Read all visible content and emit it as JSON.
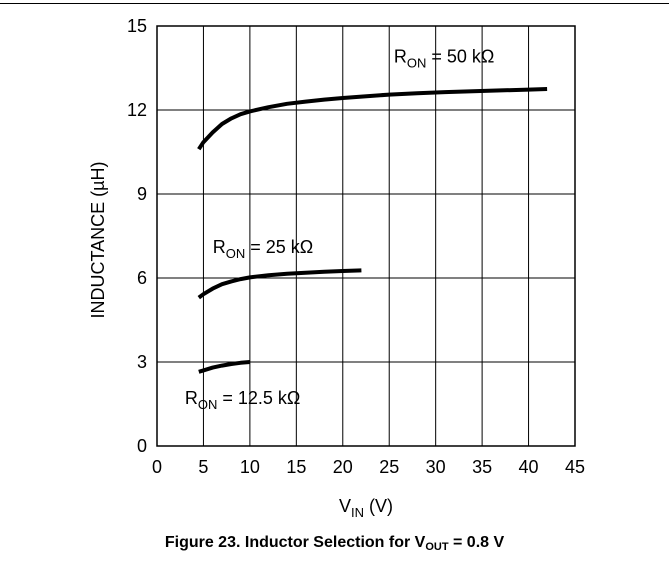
{
  "figure": {
    "caption_prefix": "Figure 23. Inductor Selection for V",
    "caption_sub": "OUT",
    "caption_suffix": " = 0.8 V"
  },
  "chart_data": {
    "type": "line",
    "xlabel": {
      "main": "V",
      "sub": "IN",
      "rest": " (V)"
    },
    "ylabel": "INDUCTANCE (µH)",
    "xlim": [
      0,
      45
    ],
    "ylim": [
      0,
      15
    ],
    "xticks": [
      0,
      5,
      10,
      15,
      20,
      25,
      30,
      35,
      40,
      45
    ],
    "yticks": [
      0,
      3,
      6,
      9,
      12,
      15
    ],
    "grid": true,
    "series": [
      {
        "name": {
          "main": "R",
          "sub": "ON",
          "rest": " = 50 kΩ"
        },
        "label_anchor": {
          "x": 25.5,
          "y": 13.7
        },
        "x": [
          4.5,
          5,
          6,
          7,
          8,
          9,
          10,
          12,
          14,
          16,
          18,
          20,
          22,
          25,
          28,
          31,
          34,
          37,
          40,
          42
        ],
        "y": [
          10.6,
          10.85,
          11.2,
          11.5,
          11.7,
          11.85,
          11.95,
          12.1,
          12.22,
          12.3,
          12.37,
          12.43,
          12.48,
          12.55,
          12.6,
          12.64,
          12.67,
          12.7,
          12.73,
          12.75
        ]
      },
      {
        "name": {
          "main": "R",
          "sub": "ON",
          "rest": " = 25 kΩ"
        },
        "label_anchor": {
          "x": 6,
          "y": 6.9
        },
        "x": [
          4.5,
          5,
          6,
          7,
          8,
          9,
          10,
          12,
          14,
          16,
          18,
          20,
          22
        ],
        "y": [
          5.3,
          5.42,
          5.62,
          5.78,
          5.88,
          5.96,
          6.02,
          6.1,
          6.15,
          6.19,
          6.22,
          6.25,
          6.27
        ]
      },
      {
        "name": {
          "main": "R",
          "sub": "ON",
          "rest": " = 12.5 kΩ"
        },
        "label_anchor": {
          "x": 3,
          "y": 1.5
        },
        "x": [
          4.5,
          5,
          6,
          7,
          8,
          9,
          10
        ],
        "y": [
          2.65,
          2.7,
          2.8,
          2.87,
          2.93,
          2.97,
          3.0
        ]
      }
    ]
  }
}
